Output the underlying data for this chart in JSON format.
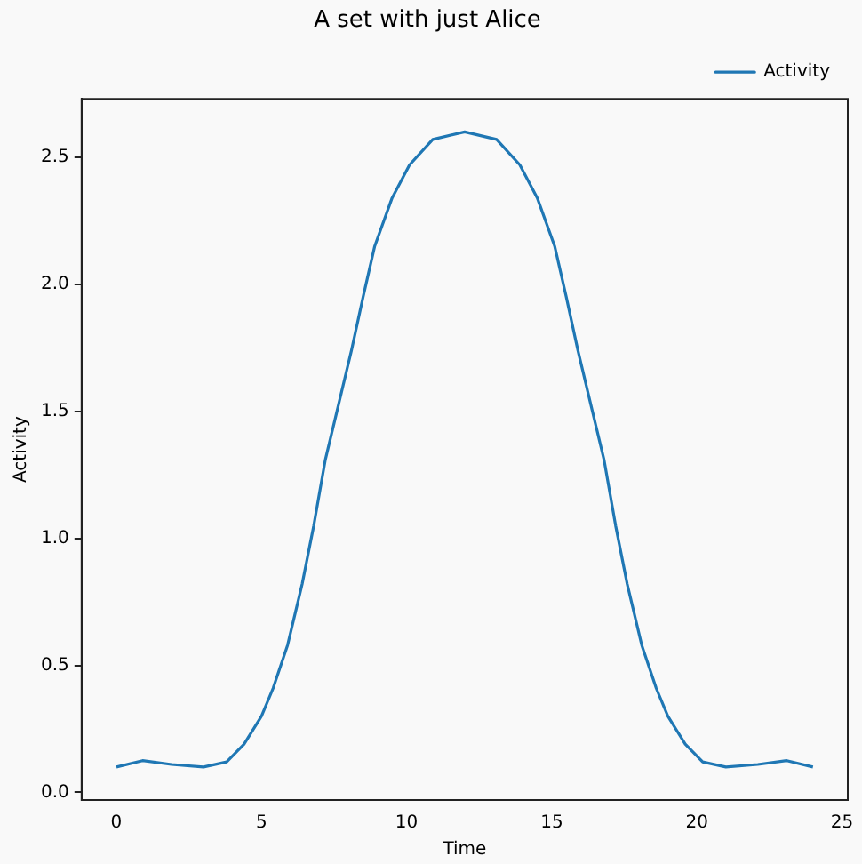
{
  "chart_data": {
    "type": "line",
    "title": "A set with just Alice",
    "xlabel": "Time",
    "ylabel": "Activity",
    "x": [
      0,
      0.9,
      1.9,
      3.0,
      3.8,
      4.4,
      5.0,
      5.4,
      5.9,
      6.4,
      6.8,
      7.2,
      7.6,
      8.1,
      8.5,
      8.9,
      9.5,
      10.1,
      10.9,
      12,
      13.1,
      13.9,
      14.5,
      15.1,
      15.5,
      15.9,
      16.4,
      16.8,
      17.2,
      17.6,
      18.1,
      18.6,
      19.0,
      19.6,
      20.2,
      21.0,
      22.1,
      23.1,
      24
    ],
    "series": [
      {
        "name": "Activity",
        "color": "#1f77b4",
        "values": [
          0.1,
          0.125,
          0.11,
          0.1,
          0.12,
          0.19,
          0.3,
          0.41,
          0.58,
          0.82,
          1.05,
          1.31,
          1.5,
          1.74,
          1.95,
          2.15,
          2.34,
          2.47,
          2.57,
          2.6,
          2.57,
          2.47,
          2.34,
          2.15,
          1.95,
          1.74,
          1.5,
          1.31,
          1.05,
          0.82,
          0.58,
          0.41,
          0.3,
          0.19,
          0.12,
          0.1,
          0.11,
          0.125,
          0.1
        ]
      }
    ],
    "xlim": [
      -1.2,
      25.2
    ],
    "xticks": [
      0,
      5,
      10,
      15,
      20,
      25
    ],
    "ylim": [
      -0.03,
      2.73
    ],
    "yticks": [
      {
        "value": 0,
        "label": "0.0"
      },
      {
        "value": 0.5,
        "label": "0.5"
      },
      {
        "value": 1,
        "label": "1.0"
      },
      {
        "value": 1.5,
        "label": "1.5"
      },
      {
        "value": 2,
        "label": "2.0"
      },
      {
        "value": 2.5,
        "label": "2.5"
      }
    ],
    "legend": "top right",
    "grid": false,
    "marker": "none",
    "line_style": "solid"
  }
}
